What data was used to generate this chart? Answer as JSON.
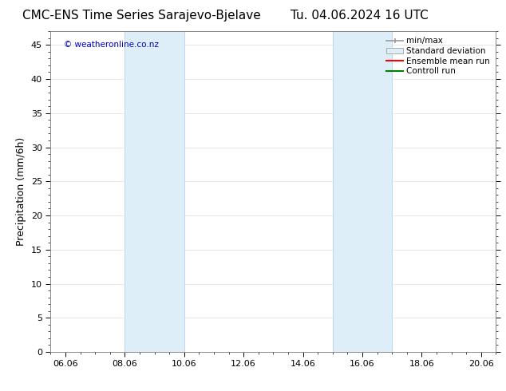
{
  "title_left": "CMC-ENS Time Series Sarajevo-Bjelave",
  "title_right": "Tu. 04.06.2024 16 UTC",
  "ylabel": "Precipitation (mm/6h)",
  "watermark": "© weatheronline.co.nz",
  "xlim_start": 5.5,
  "xlim_end": 20.5,
  "ylim_bottom": 0,
  "ylim_top": 47,
  "xtick_labels": [
    "06.06",
    "08.06",
    "10.06",
    "12.06",
    "14.06",
    "16.06",
    "18.06",
    "20.06"
  ],
  "xtick_positions": [
    6,
    8,
    10,
    12,
    14,
    16,
    18,
    20
  ],
  "ytick_positions": [
    0,
    5,
    10,
    15,
    20,
    25,
    30,
    35,
    40,
    45
  ],
  "shaded_bands": [
    {
      "x_start": 8.0,
      "x_end": 10.0
    },
    {
      "x_start": 15.0,
      "x_end": 17.0
    }
  ],
  "shaded_color": "#ddeef8",
  "shaded_edge_color": "#aaccee",
  "background_color": "#ffffff",
  "grid_color": "#dddddd",
  "legend_items": [
    {
      "label": "min/max",
      "color": "#999999",
      "style": "errorbar"
    },
    {
      "label": "Standard deviation",
      "color": "#cccccc",
      "style": "band"
    },
    {
      "label": "Ensemble mean run",
      "color": "#ff0000",
      "style": "line"
    },
    {
      "label": "Controll run",
      "color": "#008000",
      "style": "line"
    }
  ],
  "watermark_color": "#0000cc",
  "title_fontsize": 11,
  "axis_fontsize": 9,
  "tick_fontsize": 8,
  "legend_fontsize": 7.5
}
